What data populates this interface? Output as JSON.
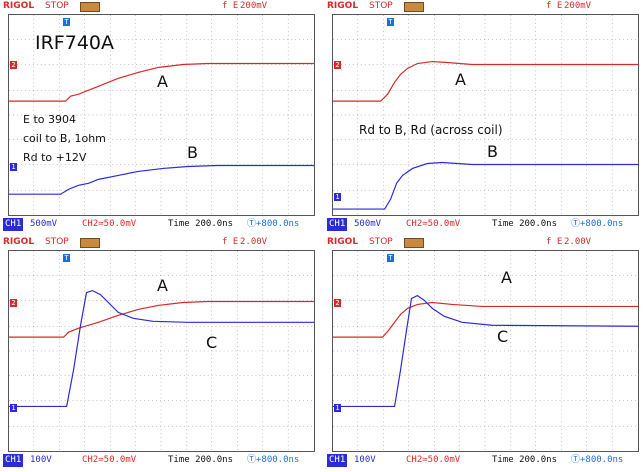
{
  "panels": [
    {
      "brand": "RIGOL",
      "state": "STOP",
      "trig_src": "f  E",
      "trig_level": "200mV",
      "ch1_tag": "CH1",
      "ch1_scale": "500mV",
      "ch2_scale": "CH2≃50.0mV",
      "time": "Time 200.0ns",
      "delay": "Ⓣ+800.0ns",
      "annotations": [
        "IRF740A",
        "A",
        "B",
        "E to 3904",
        "coil to B, 1ohm",
        "Rd to +12V"
      ]
    },
    {
      "brand": "RIGOL",
      "state": "STOP",
      "trig_src": "f  E",
      "trig_level": "200mV",
      "ch1_tag": "CH1",
      "ch1_scale": "500mV",
      "ch2_scale": "CH2≃50.0mV",
      "time": "Time 200.0ns",
      "delay": "Ⓣ+800.0ns",
      "annotations": [
        "A",
        "B",
        "Rd to B, Rd (across coil)"
      ]
    },
    {
      "brand": "RIGOL",
      "state": "STOP",
      "trig_src": "f  E",
      "trig_level": "2.00V",
      "ch1_tag": "CH1",
      "ch1_scale": "100V",
      "ch2_scale": "CH2≃50.0mV",
      "time": "Time 200.0ns",
      "delay": "Ⓣ+800.0ns",
      "annotations": [
        "A",
        "C"
      ]
    },
    {
      "brand": "RIGOL",
      "state": "STOP",
      "trig_src": "f  E",
      "trig_level": "2.00V",
      "ch1_tag": "CH1",
      "ch1_scale": "100V",
      "ch2_scale": "CH2≃50.0mV",
      "time": "Time 200.0ns",
      "delay": "Ⓣ+800.0ns",
      "annotations": [
        "A",
        "C"
      ]
    }
  ],
  "markers": {
    "trigger": "T",
    "ch1": "1",
    "ch2": "2"
  },
  "colors": {
    "ch1": "#2b2bd8",
    "ch2": "#d62a2a",
    "trigger": "#1b6fd8"
  }
}
